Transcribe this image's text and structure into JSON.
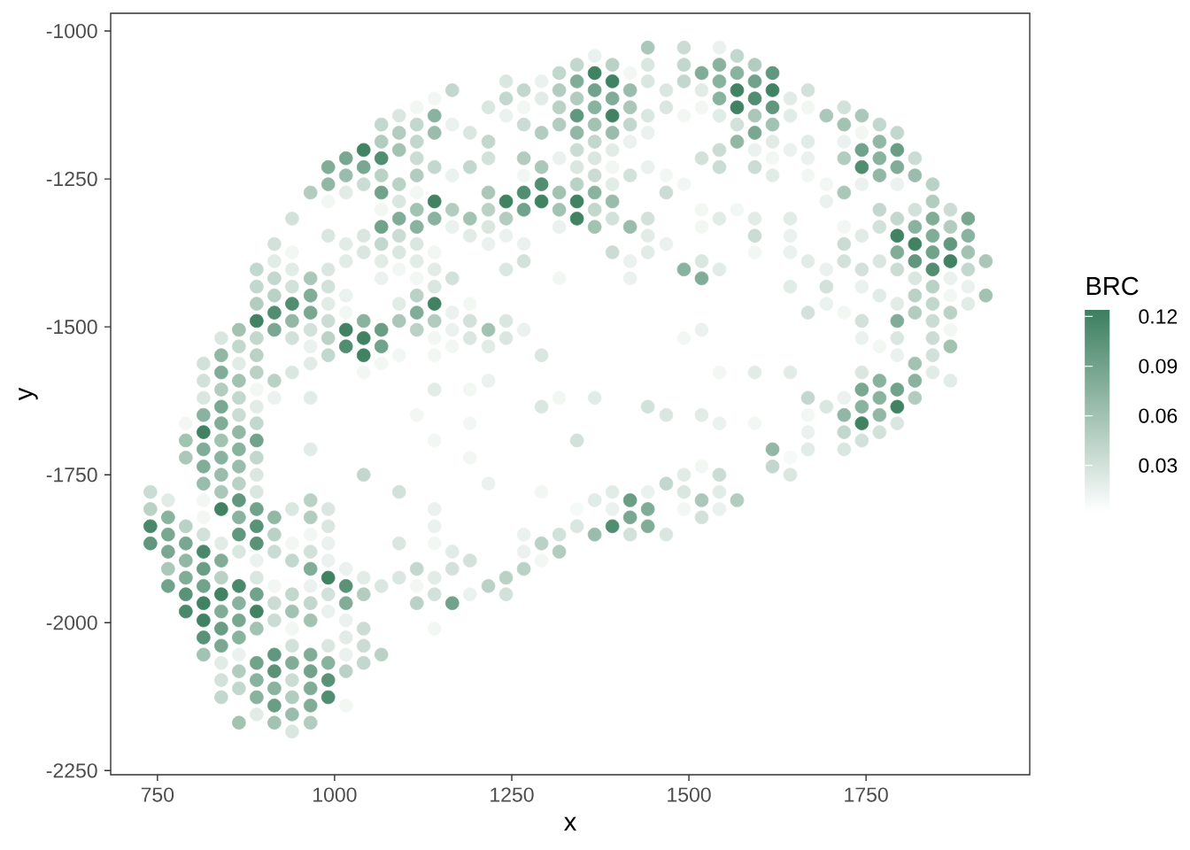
{
  "chart_data": {
    "type": "scatter",
    "xlabel": "x",
    "ylabel": "y",
    "clabel": "BRC",
    "marker": "circle",
    "xlim": [
      684,
      1981
    ],
    "ylim": [
      -2257,
      -970
    ],
    "xticks": [
      750,
      1000,
      1250,
      1500,
      1750
    ],
    "yticks": [
      -1000,
      -1250,
      -1500,
      -1750,
      -2000,
      -2250
    ],
    "clim": [
      0.002,
      0.124
    ],
    "cticks": [
      0.03,
      0.06,
      0.09,
      0.12
    ],
    "x": [
      740,
      740,
      740,
      740,
      765,
      765,
      765,
      765,
      765,
      765,
      790,
      790,
      790,
      790,
      790,
      790,
      790,
      790,
      790,
      815,
      815,
      815,
      815,
      815,
      815,
      815,
      815,
      815,
      815,
      815,
      815,
      815,
      815,
      815,
      815,
      815,
      815,
      840,
      840,
      840,
      840,
      840,
      840,
      840,
      840,
      840,
      840,
      840,
      840,
      840,
      840,
      840,
      840,
      840,
      840,
      840,
      840,
      840,
      865,
      865,
      865,
      865,
      865,
      865,
      865,
      865,
      865,
      865,
      865,
      865,
      865,
      865,
      865,
      865,
      865,
      865,
      865,
      865,
      865,
      865,
      890,
      890,
      890,
      890,
      890,
      890,
      890,
      890,
      890,
      890,
      890,
      890,
      890,
      890,
      890,
      890,
      890,
      890,
      890,
      890,
      890,
      890,
      890,
      890,
      890,
      890,
      915,
      915,
      915,
      915,
      915,
      915,
      915,
      915,
      915,
      915,
      915,
      915,
      915,
      915,
      915,
      915,
      915,
      915,
      915,
      940,
      940,
      940,
      940,
      940,
      940,
      940,
      940,
      940,
      940,
      940,
      940,
      940,
      940,
      940,
      940,
      940,
      940,
      940,
      940,
      966,
      966,
      966,
      966,
      966,
      966,
      966,
      966,
      966,
      966,
      966,
      966,
      966,
      966,
      966,
      966,
      966,
      966,
      966,
      966,
      966,
      966,
      991,
      991,
      991,
      991,
      991,
      991,
      991,
      991,
      991,
      991,
      991,
      991,
      991,
      991,
      991,
      991,
      991,
      991,
      991,
      991,
      991,
      1016,
      1016,
      1016,
      1016,
      1016,
      1016,
      1016,
      1016,
      1016,
      1016,
      1016,
      1016,
      1016,
      1016,
      1016,
      1016,
      1016,
      1041,
      1041,
      1041,
      1041,
      1041,
      1041,
      1041,
      1041,
      1041,
      1041,
      1041,
      1041,
      1041,
      1041,
      1041,
      1066,
      1066,
      1066,
      1066,
      1066,
      1066,
      1066,
      1066,
      1066,
      1066,
      1066,
      1066,
      1066,
      1066,
      1066,
      1091,
      1091,
      1091,
      1091,
      1091,
      1091,
      1091,
      1091,
      1091,
      1091,
      1091,
      1091,
      1091,
      1091,
      1091,
      1116,
      1116,
      1116,
      1116,
      1116,
      1116,
      1116,
      1116,
      1116,
      1116,
      1116,
      1116,
      1116,
      1116,
      1116,
      1116,
      1116,
      1116,
      1141,
      1141,
      1141,
      1141,
      1141,
      1141,
      1141,
      1141,
      1141,
      1141,
      1141,
      1141,
      1141,
      1141,
      1141,
      1141,
      1141,
      1141,
      1141,
      1141,
      1141,
      1166,
      1166,
      1166,
      1166,
      1166,
      1166,
      1166,
      1166,
      1166,
      1166,
      1166,
      1166,
      1191,
      1191,
      1191,
      1191,
      1191,
      1191,
      1191,
      1191,
      1191,
      1191,
      1191,
      1191,
      1217,
      1217,
      1217,
      1217,
      1217,
      1217,
      1217,
      1217,
      1217,
      1217,
      1217,
      1217,
      1242,
      1242,
      1242,
      1242,
      1242,
      1242,
      1242,
      1242,
      1242,
      1242,
      1242,
      1267,
      1267,
      1267,
      1267,
      1267,
      1267,
      1267,
      1267,
      1267,
      1267,
      1267,
      1267,
      1267,
      1292,
      1292,
      1292,
      1292,
      1292,
      1292,
      1292,
      1292,
      1292,
      1292,
      1292,
      1317,
      1317,
      1317,
      1317,
      1317,
      1317,
      1317,
      1317,
      1317,
      1317,
      1317,
      1317,
      1342,
      1342,
      1342,
      1342,
      1342,
      1342,
      1342,
      1342,
      1342,
      1342,
      1342,
      1342,
      1342,
      1367,
      1367,
      1367,
      1367,
      1367,
      1367,
      1367,
      1367,
      1367,
      1367,
      1367,
      1367,
      1367,
      1367,
      1392,
      1392,
      1392,
      1392,
      1392,
      1392,
      1392,
      1392,
      1392,
      1392,
      1392,
      1392,
      1392,
      1392,
      1417,
      1417,
      1417,
      1417,
      1417,
      1417,
      1417,
      1417,
      1417,
      1417,
      1417,
      1417,
      1442,
      1442,
      1442,
      1442,
      1442,
      1442,
      1442,
      1442,
      1442,
      1442,
      1442,
      1442,
      1442,
      1468,
      1468,
      1468,
      1468,
      1468,
      1468,
      1468,
      1468,
      1493,
      1493,
      1493,
      1493,
      1493,
      1493,
      1493,
      1493,
      1493,
      1493,
      1518,
      1518,
      1518,
      1518,
      1518,
      1518,
      1518,
      1518,
      1518,
      1518,
      1518,
      1518,
      1518,
      1543,
      1543,
      1543,
      1543,
      1543,
      1543,
      1543,
      1543,
      1543,
      1543,
      1543,
      1543,
      1543,
      1543,
      1568,
      1568,
      1568,
      1568,
      1568,
      1568,
      1568,
      1568,
      1593,
      1593,
      1593,
      1593,
      1593,
      1593,
      1593,
      1593,
      1593,
      1593,
      1593,
      1593,
      1618,
      1618,
      1618,
      1618,
      1618,
      1618,
      1618,
      1618,
      1618,
      1643,
      1643,
      1643,
      1643,
      1643,
      1643,
      1643,
      1643,
      1643,
      1643,
      1668,
      1668,
      1668,
      1668,
      1668,
      1668,
      1668,
      1668,
      1668,
      1668,
      1668,
      1694,
      1694,
      1694,
      1694,
      1694,
      1694,
      1694,
      1719,
      1719,
      1719,
      1719,
      1719,
      1719,
      1719,
      1719,
      1719,
      1719,
      1719,
      1719,
      1719,
      1744,
      1744,
      1744,
      1744,
      1744,
      1744,
      1744,
      1744,
      1744,
      1744,
      1744,
      1744,
      1744,
      1744,
      1744,
      1769,
      1769,
      1769,
      1769,
      1769,
      1769,
      1769,
      1769,
      1769,
      1769,
      1769,
      1769,
      1769,
      1794,
      1794,
      1794,
      1794,
      1794,
      1794,
      1794,
      1794,
      1794,
      1794,
      1794,
      1794,
      1794,
      1794,
      1794,
      1819,
      1819,
      1819,
      1819,
      1819,
      1819,
      1819,
      1819,
      1819,
      1819,
      1819,
      1819,
      1844,
      1844,
      1844,
      1844,
      1844,
      1844,
      1844,
      1844,
      1844,
      1844,
      1844,
      1844,
      1869,
      1869,
      1869,
      1869,
      1869,
      1869,
      1869,
      1869,
      1869,
      1869,
      1894,
      1894,
      1894,
      1894,
      1894,
      1894,
      1919,
      1919
    ],
    "values": [
      -1779,
      -1808,
      -1837,
      -1866,
      -1793,
      -1822,
      -1851,
      -1880,
      -1909,
      -1938,
      -1663,
      -1692,
      -1721,
      -1837,
      -1866,
      -1895,
      -1924,
      -1952,
      -1981,
      -1562,
      -1591,
      -1620,
      -1649,
      -1678,
      -1707,
      -1736,
      -1765,
      -1793,
      -1822,
      -1851,
      -1880,
      -1909,
      -1938,
      -1967,
      -1996,
      -2025,
      -2054,
      -1519,
      -1548,
      -1577,
      -1606,
      -1635,
      -1663,
      -1692,
      -1721,
      -1750,
      -1779,
      -1808,
      -1866,
      -1895,
      -1924,
      -1952,
      -1981,
      -2010,
      -2039,
      -2068,
      -2097,
      -2126,
      -1505,
      -1533,
      -1562,
      -1591,
      -1620,
      -1649,
      -1678,
      -1707,
      -1736,
      -1765,
      -1793,
      -1822,
      -1851,
      -1880,
      -1938,
      -1967,
      -1996,
      -2025,
      -2054,
      -2082,
      -2111,
      -2169,
      -1403,
      -1432,
      -1461,
      -1490,
      -1519,
      -1548,
      -1577,
      -1606,
      -1635,
      -1663,
      -1692,
      -1721,
      -1750,
      -1779,
      -1808,
      -1837,
      -1866,
      -1895,
      -1924,
      -1952,
      -1981,
      -2010,
      -2068,
      -2097,
      -2126,
      -2155,
      -1360,
      -1389,
      -1418,
      -1447,
      -1476,
      -1505,
      -1591,
      -1620,
      -1822,
      -1851,
      -1880,
      -1938,
      -1967,
      -1996,
      -2054,
      -2082,
      -2111,
      -2140,
      -2169,
      -1317,
      -1374,
      -1403,
      -1432,
      -1461,
      -1490,
      -1519,
      -1577,
      -1808,
      -1866,
      -1895,
      -1952,
      -1981,
      -2010,
      -2039,
      -2068,
      -2097,
      -2126,
      -2155,
      -2184,
      -1273,
      -1418,
      -1447,
      -1476,
      -1505,
      -1533,
      -1562,
      -1620,
      -1707,
      -1793,
      -1822,
      -1851,
      -1880,
      -1909,
      -1938,
      -1967,
      -1996,
      -2054,
      -2082,
      -2111,
      -2140,
      -2169,
      -1230,
      -1259,
      -1288,
      -1346,
      -1403,
      -1432,
      -1461,
      -1490,
      -1519,
      -1548,
      -1808,
      -1837,
      -1866,
      -1895,
      -1924,
      -1952,
      -1981,
      -2039,
      -2068,
      -2097,
      -2126,
      -1215,
      -1244,
      -1273,
      -1360,
      -1389,
      -1447,
      -1476,
      -1505,
      -1533,
      -1909,
      -1938,
      -1967,
      -1996,
      -2025,
      -2054,
      -2082,
      -2140,
      -1201,
      -1230,
      -1259,
      -1346,
      -1374,
      -1490,
      -1519,
      -1548,
      -1577,
      -1750,
      -1924,
      -1952,
      -2010,
      -2039,
      -2068,
      -1158,
      -1187,
      -1215,
      -1244,
      -1273,
      -1302,
      -1331,
      -1360,
      -1389,
      -1418,
      -1505,
      -1533,
      -1562,
      -1938,
      -2054,
      -1143,
      -1172,
      -1201,
      -1259,
      -1288,
      -1317,
      -1346,
      -1374,
      -1403,
      -1461,
      -1490,
      -1548,
      -1779,
      -1866,
      -1924,
      -1129,
      -1158,
      -1187,
      -1215,
      -1244,
      -1273,
      -1302,
      -1331,
      -1360,
      -1389,
      -1418,
      -1447,
      -1476,
      -1505,
      -1649,
      -1909,
      -1938,
      -1967,
      -1114,
      -1143,
      -1172,
      -1230,
      -1288,
      -1317,
      -1374,
      -1403,
      -1432,
      -1461,
      -1490,
      -1519,
      -1548,
      -1606,
      -1692,
      -1808,
      -1837,
      -1866,
      -1924,
      -1952,
      -2010,
      -1100,
      -1158,
      -1244,
      -1302,
      -1331,
      -1418,
      -1476,
      -1505,
      -1533,
      -1880,
      -1909,
      -1967,
      -1172,
      -1230,
      -1317,
      -1346,
      -1461,
      -1490,
      -1519,
      -1606,
      -1663,
      -1721,
      -1895,
      -1952,
      -1129,
      -1187,
      -1215,
      -1273,
      -1302,
      -1331,
      -1360,
      -1505,
      -1533,
      -1591,
      -1765,
      -1938,
      -1085,
      -1114,
      -1143,
      -1288,
      -1317,
      -1346,
      -1403,
      -1490,
      -1519,
      -1924,
      -1952,
      -1100,
      -1129,
      -1158,
      -1215,
      -1244,
      -1273,
      -1302,
      -1360,
      -1389,
      -1505,
      -1851,
      -1880,
      -1909,
      -1085,
      -1114,
      -1172,
      -1230,
      -1259,
      -1288,
      -1548,
      -1635,
      -1779,
      -1866,
      -1895,
      -1071,
      -1100,
      -1129,
      -1158,
      -1215,
      -1273,
      -1302,
      -1331,
      -1418,
      -1620,
      -1851,
      -1880,
      -1057,
      -1085,
      -1114,
      -1143,
      -1172,
      -1201,
      -1230,
      -1259,
      -1288,
      -1317,
      -1692,
      -1808,
      -1837,
      -1042,
      -1071,
      -1100,
      -1129,
      -1158,
      -1187,
      -1215,
      -1244,
      -1273,
      -1302,
      -1331,
      -1620,
      -1793,
      -1851,
      -1057,
      -1085,
      -1114,
      -1143,
      -1172,
      -1201,
      -1230,
      -1259,
      -1288,
      -1317,
      -1374,
      -1779,
      -1808,
      -1837,
      -1071,
      -1100,
      -1129,
      -1158,
      -1187,
      -1244,
      -1331,
      -1389,
      -1418,
      -1793,
      -1822,
      -1851,
      -1028,
      -1057,
      -1085,
      -1143,
      -1172,
      -1230,
      -1317,
      -1346,
      -1374,
      -1635,
      -1779,
      -1808,
      -1837,
      -1100,
      -1129,
      -1244,
      -1273,
      -1360,
      -1649,
      -1765,
      -1851,
      -1028,
      -1057,
      -1085,
      -1143,
      -1259,
      -1403,
      -1519,
      -1750,
      -1779,
      -1808,
      -1071,
      -1100,
      -1129,
      -1215,
      -1302,
      -1331,
      -1389,
      -1418,
      -1505,
      -1649,
      -1736,
      -1793,
      -1822,
      -1028,
      -1057,
      -1085,
      -1114,
      -1143,
      -1201,
      -1230,
      -1317,
      -1403,
      -1577,
      -1663,
      -1750,
      -1779,
      -1808,
      -1042,
      -1071,
      -1100,
      -1129,
      -1158,
      -1187,
      -1302,
      -1793,
      -1057,
      -1085,
      -1114,
      -1143,
      -1172,
      -1201,
      -1230,
      -1317,
      -1346,
      -1374,
      -1577,
      -1663,
      -1071,
      -1100,
      -1129,
      -1158,
      -1187,
      -1215,
      -1244,
      -1707,
      -1736,
      -1114,
      -1143,
      -1201,
      -1317,
      -1346,
      -1374,
      -1432,
      -1577,
      -1721,
      -1750,
      -1100,
      -1129,
      -1187,
      -1215,
      -1244,
      -1389,
      -1476,
      -1620,
      -1649,
      -1678,
      -1707,
      -1143,
      -1259,
      -1288,
      -1403,
      -1432,
      -1461,
      -1635,
      -1129,
      -1158,
      -1187,
      -1215,
      -1273,
      -1331,
      -1360,
      -1389,
      -1476,
      -1620,
      -1649,
      -1678,
      -1707,
      -1143,
      -1172,
      -1201,
      -1230,
      -1259,
      -1346,
      -1403,
      -1432,
      -1490,
      -1519,
      -1577,
      -1606,
      -1635,
      -1663,
      -1692,
      -1158,
      -1187,
      -1215,
      -1244,
      -1302,
      -1331,
      -1389,
      -1447,
      -1533,
      -1591,
      -1620,
      -1649,
      -1678,
      -1172,
      -1201,
      -1230,
      -1259,
      -1317,
      -1346,
      -1374,
      -1403,
      -1461,
      -1490,
      -1519,
      -1548,
      -1606,
      -1635,
      -1663,
      -1215,
      -1244,
      -1302,
      -1331,
      -1360,
      -1389,
      -1418,
      -1447,
      -1476,
      -1562,
      -1591,
      -1620,
      -1259,
      -1288,
      -1317,
      -1346,
      -1374,
      -1403,
      -1432,
      -1461,
      -1490,
      -1519,
      -1548,
      -1577,
      -1302,
      -1331,
      -1360,
      -1389,
      -1418,
      -1447,
      -1476,
      -1505,
      -1533,
      -1591,
      -1317,
      -1346,
      -1374,
      -1403,
      -1432,
      -1461,
      -1389,
      -1447
    ],
    "cvalues": [
      0.035,
      0.045,
      0.115,
      0.1,
      0.02,
      0.075,
      0.085,
      0.085,
      0.055,
      0.09,
      0.01,
      0.06,
      0.055,
      0.045,
      0.085,
      0.07,
      0.08,
      0.105,
      0.115,
      0.03,
      0.03,
      0.025,
      0.075,
      0.12,
      0.08,
      0.08,
      0.065,
      0.01,
      0.01,
      0.03,
      0.115,
      0.095,
      0.09,
      0.12,
      0.12,
      0.105,
      0.06,
      0.025,
      0.07,
      0.08,
      0.05,
      0.085,
      0.08,
      0.06,
      0.075,
      0.065,
      0.055,
      0.12,
      0.02,
      0.08,
      0.045,
      0.12,
      0.08,
      0.095,
      0.085,
      0.02,
      0.03,
      0.04,
      0.06,
      0.04,
      0.02,
      0.06,
      0.04,
      0.035,
      0.07,
      0.075,
      0.065,
      0.045,
      0.1,
      0.075,
      0.1,
      0.025,
      0.115,
      0.075,
      0.085,
      0.075,
      0.015,
      0.05,
      0.04,
      0.06,
      0.04,
      0.04,
      0.05,
      0.12,
      0.04,
      0.045,
      0.045,
      0.01,
      0.02,
      0.04,
      0.09,
      0.04,
      0.025,
      0.025,
      0.09,
      0.105,
      0.105,
      0.015,
      0.025,
      0.09,
      0.12,
      0.06,
      0.09,
      0.075,
      0.075,
      0.02,
      0.03,
      0.02,
      0.04,
      0.045,
      0.11,
      0.085,
      0.045,
      0.015,
      0.07,
      0.045,
      0.035,
      0.01,
      0.035,
      0.035,
      0.1,
      0.105,
      0.075,
      0.095,
      0.06,
      0.03,
      0.01,
      0.02,
      0.03,
      0.11,
      0.07,
      0.03,
      0.025,
      0.025,
      0.01,
      0.04,
      0.04,
      0.06,
      0.01,
      0.03,
      0.08,
      0.035,
      0.05,
      0.065,
      0.025,
      0.05,
      0.055,
      0.08,
      0.085,
      0.03,
      0.015,
      0.02,
      0.02,
      0.02,
      0.045,
      0.05,
      0.01,
      0.03,
      0.08,
      0.015,
      0.04,
      0.06,
      0.08,
      0.09,
      0.08,
      0.08,
      0.05,
      0.08,
      0.07,
      0.01,
      0.025,
      0.025,
      0.03,
      0.02,
      0.035,
      0.045,
      0.04,
      0.025,
      0.025,
      0.015,
      0.015,
      0.12,
      0.03,
      0.015,
      0.025,
      0.075,
      0.105,
      0.11,
      0.085,
      0.065,
      0.02,
      0.02,
      0.02,
      0.015,
      0.01,
      0.12,
      0.11,
      0.015,
      0.105,
      0.08,
      0.015,
      0.02,
      0.015,
      0.045,
      0.01,
      0.12,
      0.085,
      0.035,
      0.025,
      0.025,
      0.075,
      0.12,
      0.12,
      0.01,
      0.04,
      0.02,
      0.05,
      0.035,
      0.035,
      0.04,
      0.04,
      0.05,
      0.11,
      0.045,
      0.09,
      0.01,
      0.09,
      0.04,
      0.02,
      0.015,
      0.095,
      0.09,
      0.01,
      0.025,
      0.045,
      0.025,
      0.05,
      0.06,
      0.045,
      0.025,
      0.08,
      0.035,
      0.025,
      0.01,
      0.02,
      0.055,
      0.01,
      0.03,
      0.025,
      0.025,
      0.01,
      0.04,
      0.04,
      0.035,
      0.05,
      0.01,
      0.06,
      0.075,
      0.025,
      0.02,
      0.01,
      0.045,
      0.08,
      0.045,
      0.01,
      0.04,
      0.01,
      0.045,
      0.01,
      0.075,
      0.065,
      0.04,
      0.12,
      0.075,
      0.01,
      0.02,
      0.025,
      0.12,
      0.05,
      0.01,
      0.01,
      0.02,
      0.01,
      0.015,
      0.015,
      0.01,
      0.02,
      0.03,
      0.01,
      0.04,
      0.015,
      0.015,
      0.05,
      0.015,
      0.03,
      0.015,
      0.015,
      0.01,
      0.02,
      0.03,
      0.09,
      0.025,
      0.04,
      0.06,
      0.02,
      0.01,
      0.03,
      0.025,
      0.01,
      0.01,
      0.01,
      0.03,
      0.015,
      0.025,
      0.04,
      0.03,
      0.055,
      0.045,
      0.025,
      0.015,
      0.06,
      0.02,
      0.015,
      0.015,
      0.045,
      0.025,
      0.04,
      0.015,
      0.12,
      0.05,
      0.015,
      0.025,
      0.025,
      0.025,
      0.045,
      0.03,
      0.04,
      0.01,
      0.035,
      0.05,
      0.01,
      0.11,
      0.09,
      0.015,
      0.03,
      0.015,
      0.015,
      0.015,
      0.045,
      0.015,
      0.02,
      0.05,
      0.055,
      0.11,
      0.12,
      0.025,
      0.025,
      0.01,
      0.045,
      0.01,
      0.04,
      0.05,
      0.045,
      0.05,
      0.015,
      0.06,
      0.06,
      0.015,
      0.01,
      0.01,
      0.03,
      0.05,
      0.04,
      0.08,
      0.05,
      0.1,
      0.07,
      0.035,
      0.025,
      0.045,
      0.12,
      0.12,
      0.03,
      0.008,
      0.025,
      0.015,
      0.12,
      0.09,
      0.075,
      0.06,
      0.04,
      0.025,
      0.035,
      0.075,
      0.04,
      0.06,
      0.02,
      0.02,
      0.065,
      0.045,
      0.12,
      0.08,
      0.12,
      0.065,
      0.02,
      0.01,
      0.02,
      0.065,
      0.03,
      0.035,
      0.02,
      0.015,
      0.11,
      0.01,
      0.065,
      0.055,
      0.04,
      0.015,
      0.03,
      0.065,
      0.015,
      0.015,
      0.095,
      0.085,
      0.03,
      0.055,
      0.025,
      0.025,
      0.025,
      0.015,
      0.015,
      0.03,
      0.02,
      0.02,
      0.03,
      0.015,
      0.08,
      0.08,
      0.025,
      0.025,
      0.01,
      0.035,
      0.015,
      0.025,
      0.04,
      0.025,
      0.035,
      0.04,
      0.04,
      0.01,
      0.01,
      0.075,
      0.01,
      0.02,
      0.025,
      0.01,
      0.08,
      0.02,
      0.01,
      0.03,
      0.01,
      0.01,
      0.025,
      0.08,
      0.015,
      0.02,
      0.01,
      0.055,
      0.03,
      0.015,
      0.075,
      0.075,
      0.075,
      0.02,
      0.035,
      0.035,
      0.02,
      0.02,
      0.01,
      0.015,
      0.035,
      0.02,
      0.015,
      0.04,
      0.075,
      0.12,
      0.12,
      0.03,
      0.07,
      0.01,
      0.05,
      0.05,
      0.09,
      0.11,
      0.055,
      0.085,
      0.015,
      0.035,
      0.02,
      0.035,
      0.01,
      0.02,
      0.01,
      0.1,
      0.12,
      0.1,
      0.06,
      0.02,
      0.01,
      0.02,
      0.07,
      0.04,
      0.02,
      0.02,
      0.015,
      0.02,
      0.015,
      0.015,
      0.02,
      0.02,
      0.008,
      0.025,
      0.03,
      0.01,
      0.02,
      0.015,
      0.01,
      0.02,
      0.03,
      0.04,
      0.01,
      0.015,
      0.02,
      0.055,
      0.01,
      0.015,
      0.015,
      0.03,
      0.015,
      0.025,
      0.03,
      0.06,
      0.015,
      0.05,
      0.055,
      0.01,
      0.035,
      0.03,
      0.01,
      0.015,
      0.07,
      0.04,
      0.025,
      0.055,
      0.01,
      0.09,
      0.11,
      0.015,
      0.02,
      0.03,
      0.015,
      0.03,
      0.015,
      0.025,
      0.085,
      0.075,
      0.12,
      0.03,
      0.04,
      0.07,
      0.075,
      0.07,
      0.04,
      0.03,
      0.025,
      0.02,
      0.01,
      0.075,
      0.075,
      0.07,
      0.03,
      0.04,
      0.095,
      0.08,
      0.015,
      0.04,
      0.12,
      0.08,
      0.035,
      0.02,
      0.08,
      0.025,
      0.015,
      0.09,
      0.12,
      0.025,
      0.035,
      0.065,
      0.03,
      0.075,
      0.12,
      0.1,
      0.025,
      0.045,
      0.05,
      0.06,
      0.075,
      0.05,
      0.045,
      0.05,
      0.08,
      0.08,
      0.09,
      0.11,
      0.045,
      0.04,
      0.035,
      0.035,
      0.03,
      0.02,
      0.035,
      0.05,
      0.1,
      0.12,
      0.015,
      0.01,
      0.045,
      0.01,
      0.06,
      0.02,
      0.085,
      0.075,
      0.06,
      0.04,
      0.015,
      0.02,
      0.055,
      0.06
    ]
  }
}
